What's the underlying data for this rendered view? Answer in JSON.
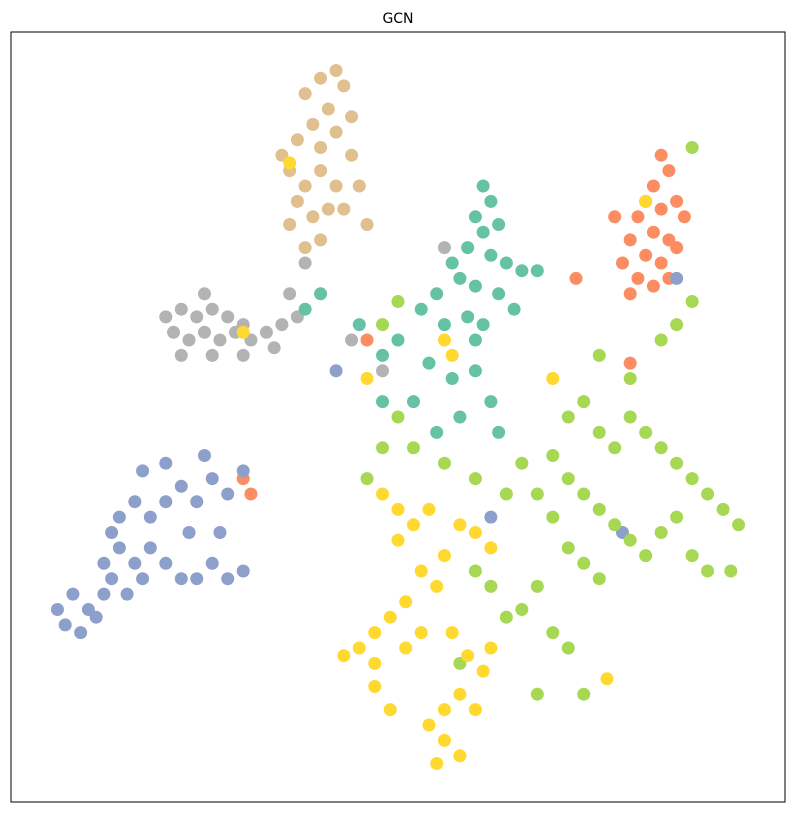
{
  "chart_data": {
    "type": "scatter",
    "title": "GCN",
    "xlim": [
      0,
      100
    ],
    "ylim": [
      0,
      100
    ],
    "marker_radius": 6.5,
    "series": [
      {
        "color": "#e0c08f",
        "x": [
          38,
          40,
          42,
          43,
          41,
          39,
          37,
          40,
          42,
          44,
          36,
          38,
          40,
          42,
          44,
          37,
          39,
          41,
          43,
          36,
          45,
          38,
          35,
          40,
          46
        ],
        "y": [
          92,
          94,
          95,
          93,
          90,
          88,
          86,
          85,
          87,
          89,
          82,
          80,
          82,
          80,
          84,
          78,
          76,
          77,
          77,
          75,
          80,
          72,
          84,
          73,
          75
        ]
      },
      {
        "color": "#b3b3b3",
        "x": [
          20,
          22,
          24,
          26,
          28,
          30,
          21,
          23,
          25,
          27,
          29,
          31,
          33,
          35,
          22,
          26,
          30,
          34,
          37,
          36,
          38,
          56,
          44,
          48,
          25
        ],
        "y": [
          63,
          64,
          63,
          64,
          63,
          62,
          61,
          60,
          61,
          60,
          61,
          60,
          61,
          62,
          58,
          58,
          58,
          59,
          63,
          66,
          70,
          72,
          60,
          56,
          66
        ]
      },
      {
        "color": "#66c2a5",
        "x": [
          61,
          62,
          60,
          61,
          63,
          59,
          57,
          62,
          64,
          66,
          58,
          60,
          63,
          55,
          53,
          56,
          59,
          61,
          65,
          50,
          48,
          54,
          57,
          60,
          62,
          52,
          58,
          55,
          63,
          45,
          68,
          40,
          38,
          48,
          60
        ],
        "y": [
          80,
          78,
          76,
          74,
          75,
          72,
          70,
          71,
          70,
          69,
          68,
          67,
          66,
          66,
          64,
          62,
          63,
          62,
          64,
          60,
          58,
          57,
          55,
          56,
          52,
          52,
          50,
          48,
          48,
          62,
          69,
          66,
          64,
          52,
          60
        ]
      },
      {
        "color": "#fc8d62",
        "x": [
          84,
          85,
          83,
          82,
          84,
          86,
          81,
          83,
          85,
          80,
          82,
          84,
          86,
          79,
          81,
          83,
          85,
          78,
          87,
          80,
          46,
          30,
          31,
          80,
          73
        ],
        "y": [
          84,
          82,
          80,
          78,
          77,
          78,
          76,
          74,
          73,
          73,
          71,
          70,
          72,
          70,
          68,
          67,
          68,
          76,
          76,
          66,
          60,
          42,
          40,
          57,
          68
        ]
      },
      {
        "color": "#8da0cb",
        "x": [
          6,
          8,
          10,
          12,
          7,
          9,
          11,
          13,
          15,
          17,
          12,
          14,
          16,
          18,
          20,
          22,
          24,
          26,
          28,
          30,
          14,
          16,
          18,
          20,
          22,
          24,
          26,
          28,
          30,
          17,
          20,
          25,
          13,
          23,
          27,
          62,
          79,
          42,
          86
        ],
        "y": [
          25,
          27,
          25,
          27,
          23,
          22,
          24,
          29,
          27,
          29,
          31,
          33,
          31,
          33,
          31,
          29,
          29,
          31,
          29,
          30,
          37,
          39,
          37,
          39,
          41,
          39,
          42,
          40,
          43,
          43,
          44,
          45,
          35,
          35,
          35,
          37,
          35,
          56,
          68
        ]
      },
      {
        "color": "#a6d854",
        "x": [
          72,
          74,
          76,
          78,
          80,
          82,
          84,
          86,
          88,
          90,
          92,
          94,
          70,
          72,
          74,
          76,
          78,
          80,
          82,
          84,
          86,
          88,
          90,
          93,
          66,
          68,
          70,
          72,
          74,
          76,
          68,
          66,
          70,
          72,
          68,
          50,
          52,
          56,
          60,
          64,
          62,
          60,
          64,
          48,
          80,
          84,
          86,
          88,
          76,
          50,
          48,
          58,
          74,
          46,
          88
        ],
        "y": [
          50,
          52,
          48,
          46,
          50,
          48,
          46,
          44,
          42,
          40,
          38,
          36,
          45,
          42,
          40,
          38,
          36,
          34,
          32,
          35,
          37,
          32,
          30,
          30,
          44,
          40,
          37,
          33,
          31,
          29,
          28,
          25,
          22,
          20,
          14,
          50,
          46,
          44,
          42,
          40,
          28,
          30,
          24,
          46,
          55,
          60,
          62,
          65,
          58,
          65,
          62,
          18,
          14,
          42,
          85
        ]
      },
      {
        "color": "#ffd92f",
        "x": [
          48,
          50,
          52,
          54,
          50,
          58,
          60,
          62,
          56,
          53,
          55,
          51,
          49,
          47,
          45,
          43,
          47,
          51,
          53,
          57,
          59,
          61,
          58,
          56,
          54,
          56,
          58,
          55,
          60,
          62,
          47,
          49,
          36,
          56,
          57,
          70,
          46,
          30,
          77,
          82
        ],
        "y": [
          40,
          38,
          36,
          38,
          34,
          36,
          35,
          33,
          32,
          30,
          28,
          26,
          24,
          22,
          20,
          19,
          18,
          20,
          22,
          22,
          19,
          17,
          14,
          12,
          10,
          8,
          6,
          5,
          12,
          20,
          15,
          12,
          83,
          60,
          58,
          55,
          55,
          61,
          16,
          78
        ]
      }
    ]
  }
}
